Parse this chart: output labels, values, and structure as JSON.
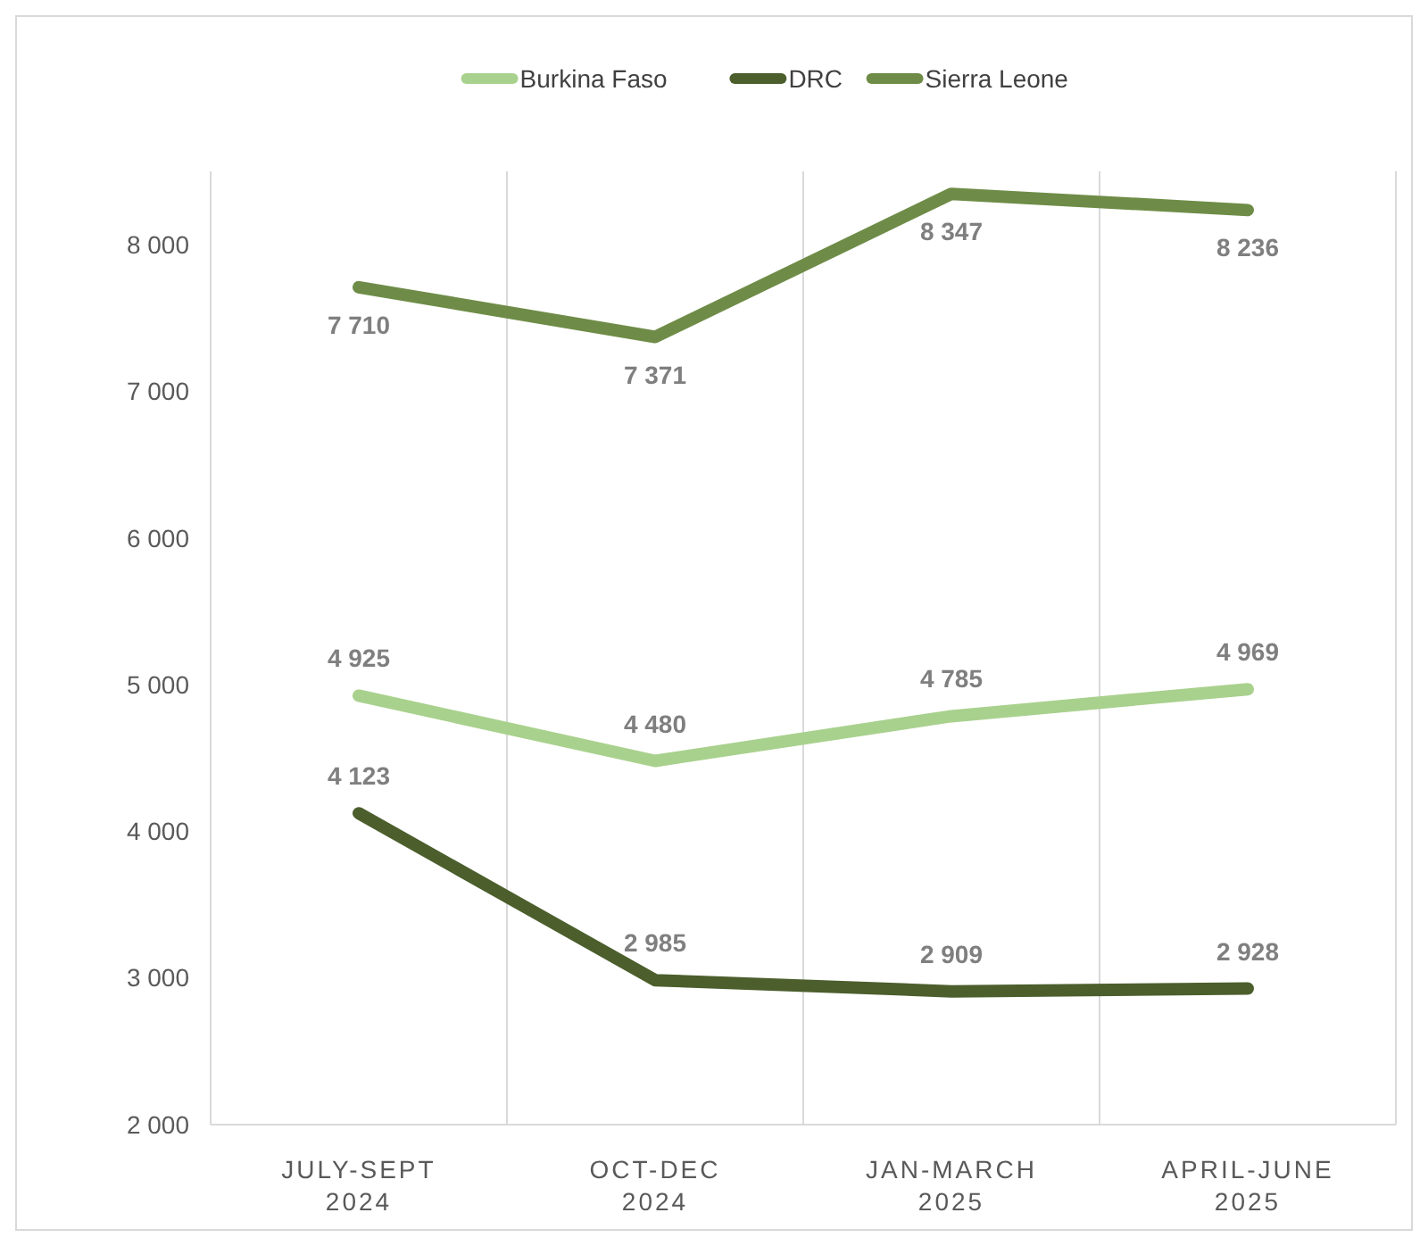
{
  "chart_data": {
    "type": "line",
    "categories": [
      "JULY-SEPT 2024",
      "OCT-DEC 2024",
      "JAN-MARCH 2025",
      "APRIL-JUNE 2025"
    ],
    "series": [
      {
        "name": "Burkina Faso",
        "color": "#a9d18e",
        "values": [
          4925,
          4480,
          4785,
          4969
        ]
      },
      {
        "name": "DRC",
        "color": "#4b5e2c",
        "values": [
          4123,
          2985,
          2909,
          2928
        ]
      },
      {
        "name": "Sierra Leone",
        "color": "#6e8c47",
        "values": [
          7710,
          7371,
          8347,
          8236
        ]
      }
    ],
    "ylim": [
      2000,
      8500
    ],
    "yticks": [
      {
        "value": 2000,
        "label": "2 000"
      },
      {
        "value": 3000,
        "label": "3 000"
      },
      {
        "value": 4000,
        "label": "4 000"
      },
      {
        "value": 5000,
        "label": "5 000"
      },
      {
        "value": 6000,
        "label": "6 000"
      },
      {
        "value": 7000,
        "label": "7 000"
      },
      {
        "value": 8000,
        "label": "8 000"
      }
    ],
    "grid": "x",
    "legend": "top",
    "data_labels": true,
    "marker": "none",
    "line_style": "solid"
  }
}
